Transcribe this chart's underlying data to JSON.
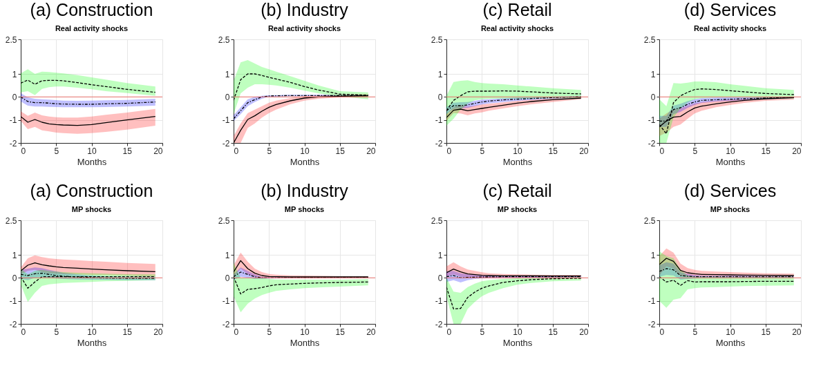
{
  "chart_data": [
    {
      "type": "line",
      "title": "(a) Construction",
      "subtitle": "Real activity shocks",
      "xlabel": "Months",
      "x": [
        0,
        1,
        2,
        3,
        4,
        5,
        6,
        8,
        10,
        12,
        15,
        19
      ],
      "xlim": [
        0,
        20
      ],
      "xticks": [
        0,
        5,
        10,
        15,
        20
      ],
      "ylim": [
        -2,
        2.5
      ],
      "yticks": [
        -2,
        -1,
        0,
        1,
        2.5
      ],
      "grid": true,
      "ref_lines": [
        {
          "axis": "y",
          "value": 0,
          "color": "#e8706c"
        }
      ],
      "series": [
        {
          "color": "#000000",
          "line_style": "solid",
          "values": [
            -0.85,
            -1.1,
            -0.98,
            -1.1,
            -1.17,
            -1.2,
            -1.22,
            -1.24,
            -1.2,
            -1.12,
            -1.0,
            -0.85
          ],
          "lower": [
            -1.05,
            -1.4,
            -1.3,
            -1.45,
            -1.5,
            -1.55,
            -1.57,
            -1.6,
            -1.57,
            -1.52,
            -1.42,
            -1.25
          ],
          "upper": [
            -0.62,
            -0.82,
            -0.68,
            -0.8,
            -0.85,
            -0.88,
            -0.9,
            -0.9,
            -0.85,
            -0.78,
            -0.68,
            -0.52
          ]
        },
        {
          "color": "#000000",
          "line_style": "dotted",
          "values": [
            0,
            -0.2,
            -0.25,
            -0.25,
            -0.27,
            -0.3,
            -0.31,
            -0.32,
            -0.32,
            -0.3,
            -0.28,
            -0.22
          ],
          "lower": [
            -0.2,
            -0.38,
            -0.42,
            -0.42,
            -0.43,
            -0.44,
            -0.45,
            -0.45,
            -0.45,
            -0.44,
            -0.42,
            -0.38
          ],
          "upper": [
            0.17,
            -0.02,
            -0.08,
            -0.1,
            -0.12,
            -0.14,
            -0.16,
            -0.17,
            -0.16,
            -0.15,
            -0.13,
            -0.08
          ]
        },
        {
          "color": "#000000",
          "line_style": "dashed",
          "values": [
            0.6,
            0.73,
            0.55,
            0.7,
            0.72,
            0.72,
            0.7,
            0.62,
            0.53,
            0.45,
            0.33,
            0.2
          ],
          "lower": [
            0.2,
            0.25,
            0.08,
            0.35,
            0.42,
            0.45,
            0.45,
            0.4,
            0.33,
            0.25,
            0.17,
            0.05
          ],
          "upper": [
            1.02,
            1.2,
            1.0,
            1.1,
            1.08,
            1.05,
            1.02,
            0.95,
            0.85,
            0.75,
            0.6,
            0.45
          ]
        }
      ]
    },
    {
      "type": "line",
      "title": "(b) Industry",
      "subtitle": "Real activity shocks",
      "xlabel": "Months",
      "x": [
        0,
        1,
        2,
        3,
        4,
        5,
        6,
        8,
        10,
        12,
        15,
        19
      ],
      "xlim": [
        0,
        20
      ],
      "xticks": [
        0,
        5,
        10,
        15,
        20
      ],
      "ylim": [
        -2,
        2.5
      ],
      "yticks": [
        -2,
        -1,
        0,
        1,
        2.5
      ],
      "grid": true,
      "ref_lines": [
        {
          "axis": "y",
          "value": 0,
          "color": "#e8706c"
        }
      ],
      "series": [
        {
          "color": "#000000",
          "line_style": "solid",
          "values": [
            -2,
            -1.45,
            -0.98,
            -0.82,
            -0.62,
            -0.45,
            -0.33,
            -0.17,
            -0.05,
            0,
            0.03,
            0.05
          ],
          "lower": [
            -2,
            -2,
            -1.35,
            -1.15,
            -0.9,
            -0.7,
            -0.55,
            -0.32,
            -0.16,
            -0.08,
            -0.02,
            0
          ],
          "upper": [
            -1.7,
            -1.15,
            -0.7,
            -0.55,
            -0.4,
            -0.25,
            -0.16,
            -0.05,
            0.03,
            0.06,
            0.1,
            0.12
          ]
        },
        {
          "color": "#000000",
          "line_style": "dotted",
          "values": [
            -0.95,
            -0.6,
            -0.25,
            -0.12,
            0,
            0.04,
            0.05,
            0.06,
            0.06,
            0.06,
            0.06,
            0.06
          ],
          "lower": [
            -1.05,
            -0.75,
            -0.4,
            -0.22,
            -0.08,
            0,
            0.02,
            0.03,
            0.03,
            0.03,
            0.03,
            0.03
          ],
          "upper": [
            -0.8,
            -0.45,
            -0.1,
            0,
            0.05,
            0.07,
            0.08,
            0.09,
            0.09,
            0.09,
            0.09,
            0.09
          ]
        },
        {
          "color": "#000000",
          "line_style": "dashed",
          "values": [
            -0.15,
            0.75,
            1.0,
            1.0,
            0.93,
            0.85,
            0.78,
            0.63,
            0.45,
            0.3,
            0.12,
            0.07
          ],
          "lower": [
            -0.75,
            0.15,
            0.4,
            0.55,
            0.55,
            0.53,
            0.5,
            0.4,
            0.27,
            0.15,
            0.02,
            -0.1
          ],
          "upper": [
            0.7,
            1.5,
            1.6,
            1.45,
            1.3,
            1.2,
            1.1,
            0.9,
            0.7,
            0.5,
            0.25,
            0.2
          ]
        }
      ]
    },
    {
      "type": "line",
      "title": "(c) Retail",
      "subtitle": "Real activity shocks",
      "xlabel": "Months",
      "x": [
        0,
        1,
        2,
        3,
        4,
        5,
        6,
        8,
        10,
        12,
        15,
        19
      ],
      "xlim": [
        0,
        20
      ],
      "xticks": [
        0,
        5,
        10,
        15,
        20
      ],
      "ylim": [
        -2,
        2.5
      ],
      "yticks": [
        -2,
        -1,
        0,
        1,
        2.5
      ],
      "grid": true,
      "ref_lines": [
        {
          "axis": "y",
          "value": 0,
          "color": "#e8706c"
        }
      ],
      "series": [
        {
          "color": "#000000",
          "line_style": "solid",
          "values": [
            -0.9,
            -0.58,
            -0.53,
            -0.6,
            -0.55,
            -0.5,
            -0.45,
            -0.36,
            -0.27,
            -0.2,
            -0.12,
            -0.05
          ],
          "lower": [
            -1.05,
            -0.7,
            -0.72,
            -0.8,
            -0.72,
            -0.67,
            -0.6,
            -0.5,
            -0.4,
            -0.32,
            -0.22,
            -0.1
          ],
          "upper": [
            -0.75,
            -0.45,
            -0.35,
            -0.42,
            -0.38,
            -0.33,
            -0.3,
            -0.24,
            -0.17,
            -0.12,
            -0.06,
            0
          ]
        },
        {
          "color": "#000000",
          "line_style": "dotted",
          "values": [
            -0.6,
            -0.38,
            -0.38,
            -0.35,
            -0.28,
            -0.22,
            -0.18,
            -0.13,
            -0.1,
            -0.07,
            -0.03,
            0.01
          ],
          "lower": [
            -0.75,
            -0.52,
            -0.5,
            -0.48,
            -0.4,
            -0.33,
            -0.28,
            -0.22,
            -0.17,
            -0.13,
            -0.08,
            -0.03
          ],
          "upper": [
            -0.45,
            -0.25,
            -0.23,
            -0.22,
            -0.17,
            -0.12,
            -0.1,
            -0.06,
            -0.03,
            -0.01,
            0.02,
            0.05
          ]
        },
        {
          "color": "#000000",
          "line_style": "dashed",
          "values": [
            -0.6,
            -0.15,
            0.05,
            0.22,
            0.25,
            0.25,
            0.25,
            0.26,
            0.25,
            0.22,
            0.17,
            0.13
          ],
          "lower": [
            -1.25,
            -0.95,
            -0.55,
            -0.3,
            -0.15,
            -0.1,
            -0.08,
            -0.07,
            -0.07,
            -0.07,
            -0.06,
            -0.05
          ],
          "upper": [
            0.05,
            0.65,
            0.7,
            0.72,
            0.65,
            0.6,
            0.58,
            0.55,
            0.5,
            0.45,
            0.38,
            0.3
          ]
        }
      ]
    },
    {
      "type": "line",
      "title": "(d) Services",
      "subtitle": "Real activity shocks",
      "xlabel": "Months",
      "x": [
        0,
        1,
        2,
        3,
        4,
        5,
        6,
        8,
        10,
        12,
        15,
        19
      ],
      "xlim": [
        0,
        20
      ],
      "xticks": [
        0,
        5,
        10,
        15,
        20
      ],
      "ylim": [
        -2,
        2.5
      ],
      "yticks": [
        -2,
        -1,
        0,
        1,
        2.5
      ],
      "grid": true,
      "ref_lines": [
        {
          "axis": "y",
          "value": 0,
          "color": "#e8706c"
        }
      ],
      "series": [
        {
          "color": "#000000",
          "line_style": "solid",
          "values": [
            -1.3,
            -1.05,
            -0.88,
            -0.85,
            -0.65,
            -0.48,
            -0.4,
            -0.3,
            -0.22,
            -0.15,
            -0.08,
            -0.03
          ],
          "lower": [
            -1.7,
            -1.55,
            -1.3,
            -1.2,
            -0.95,
            -0.72,
            -0.6,
            -0.45,
            -0.35,
            -0.26,
            -0.17,
            -0.12
          ],
          "upper": [
            -0.95,
            -0.72,
            -0.55,
            -0.5,
            -0.38,
            -0.28,
            -0.22,
            -0.16,
            -0.12,
            -0.08,
            -0.03,
            0.02
          ]
        },
        {
          "color": "#000000",
          "line_style": "dotted",
          "values": [
            -1.05,
            -1.05,
            -0.55,
            -0.47,
            -0.32,
            -0.22,
            -0.15,
            -0.12,
            -0.1,
            -0.08,
            -0.05,
            -0.02
          ],
          "lower": [
            -1.3,
            -1.3,
            -0.75,
            -0.65,
            -0.48,
            -0.35,
            -0.26,
            -0.2,
            -0.17,
            -0.14,
            -0.1,
            -0.06
          ],
          "upper": [
            -0.82,
            -0.82,
            -0.38,
            -0.3,
            -0.18,
            -0.1,
            -0.05,
            -0.03,
            -0.02,
            -0.01,
            0,
            0.02
          ]
        },
        {
          "color": "#000000",
          "line_style": "dashed",
          "values": [
            -1.2,
            -1.6,
            -0.25,
            0.05,
            0.2,
            0.32,
            0.35,
            0.32,
            0.27,
            0.22,
            0.15,
            0.1
          ],
          "lower": [
            -2,
            -2,
            -0.9,
            -0.5,
            -0.25,
            -0.1,
            -0.05,
            -0.03,
            -0.03,
            -0.03,
            -0.05,
            -0.07
          ],
          "upper": [
            -0.1,
            -0.4,
            0.6,
            0.58,
            0.62,
            0.67,
            0.67,
            0.64,
            0.55,
            0.48,
            0.38,
            0.3
          ]
        }
      ]
    },
    {
      "type": "line",
      "title": "(a) Construction",
      "subtitle": "MP shocks",
      "xlabel": "Months",
      "x": [
        0,
        1,
        2,
        3,
        4,
        5,
        6,
        8,
        10,
        12,
        15,
        19
      ],
      "xlim": [
        0,
        20
      ],
      "xticks": [
        0,
        5,
        10,
        15,
        20
      ],
      "ylim": [
        -2,
        2.5
      ],
      "yticks": [
        -2,
        -1,
        0,
        1,
        2.5
      ],
      "grid": true,
      "ref_lines": [
        {
          "axis": "y",
          "value": 0,
          "color": "#e8706c"
        }
      ],
      "series": [
        {
          "color": "#000000",
          "line_style": "solid",
          "values": [
            0.3,
            0.55,
            0.65,
            0.57,
            0.52,
            0.48,
            0.45,
            0.42,
            0.38,
            0.35,
            0.31,
            0.27
          ],
          "lower": [
            0.15,
            0.3,
            0.35,
            0.25,
            0.2,
            0.18,
            0.16,
            0.15,
            0.13,
            0.12,
            0.1,
            0.05
          ],
          "upper": [
            0.45,
            0.85,
            0.98,
            0.9,
            0.85,
            0.82,
            0.8,
            0.77,
            0.73,
            0.7,
            0.65,
            0.6
          ]
        },
        {
          "color": "#000000",
          "line_style": "dotted",
          "values": [
            0.15,
            0.1,
            0.18,
            0.2,
            0.15,
            0.1,
            0.07,
            0.04,
            0.01,
            -0.01,
            -0.02,
            -0.02
          ],
          "lower": [
            -0.05,
            -0.1,
            0,
            0.03,
            0,
            -0.03,
            -0.05,
            -0.07,
            -0.08,
            -0.09,
            -0.1,
            -0.1
          ],
          "upper": [
            0.35,
            0.4,
            0.45,
            0.42,
            0.35,
            0.28,
            0.22,
            0.15,
            0.1,
            0.07,
            0.05,
            0.05
          ]
        },
        {
          "color": "#000000",
          "line_style": "dashed",
          "values": [
            0.05,
            -0.45,
            -0.18,
            0.05,
            0.05,
            0.05,
            0.05,
            0.05,
            0.05,
            0.05,
            0.05,
            0.05
          ],
          "lower": [
            -0.3,
            -1.05,
            -0.65,
            -0.35,
            -0.28,
            -0.25,
            -0.22,
            -0.2,
            -0.18,
            -0.15,
            -0.13,
            -0.1
          ],
          "upper": [
            0.4,
            0.15,
            0.3,
            0.35,
            0.3,
            0.27,
            0.25,
            0.22,
            0.2,
            0.18,
            0.16,
            0.15
          ]
        }
      ]
    },
    {
      "type": "line",
      "title": "(b) Industry",
      "subtitle": "MP shocks",
      "xlabel": "Months",
      "x": [
        0,
        1,
        2,
        3,
        4,
        5,
        6,
        8,
        10,
        12,
        15,
        19
      ],
      "xlim": [
        0,
        20
      ],
      "xticks": [
        0,
        5,
        10,
        15,
        20
      ],
      "ylim": [
        -2,
        2.5
      ],
      "yticks": [
        -2,
        -1,
        0,
        1,
        2.5
      ],
      "grid": true,
      "ref_lines": [
        {
          "axis": "y",
          "value": 0,
          "color": "#e8706c"
        }
      ],
      "series": [
        {
          "color": "#000000",
          "line_style": "solid",
          "values": [
            0.25,
            0.75,
            0.4,
            0.2,
            0.1,
            0.06,
            0.05,
            0.04,
            0.04,
            0.04,
            0.04,
            0.04
          ],
          "lower": [
            0,
            0.4,
            0.15,
            0.05,
            0,
            0,
            0,
            0,
            0,
            0,
            0,
            0
          ],
          "upper": [
            0.55,
            1.1,
            0.7,
            0.4,
            0.25,
            0.17,
            0.14,
            0.11,
            0.1,
            0.09,
            0.08,
            0.08
          ]
        },
        {
          "color": "#000000",
          "line_style": "dotted",
          "values": [
            0.05,
            0.25,
            0.15,
            0.05,
            0,
            0,
            0,
            0.01,
            0.01,
            0.01,
            0.02,
            0.02
          ],
          "lower": [
            -0.1,
            0.05,
            0,
            -0.05,
            -0.05,
            -0.03,
            -0.02,
            -0.01,
            -0.01,
            0,
            0,
            0
          ],
          "upper": [
            0.15,
            0.45,
            0.3,
            0.15,
            0.05,
            0.03,
            0.03,
            0.03,
            0.03,
            0.03,
            0.04,
            0.04
          ]
        },
        {
          "color": "#000000",
          "line_style": "dashed",
          "values": [
            0.05,
            -0.7,
            -0.5,
            -0.47,
            -0.42,
            -0.35,
            -0.3,
            -0.27,
            -0.24,
            -0.22,
            -0.2,
            -0.18
          ],
          "lower": [
            -0.8,
            -1.5,
            -1.12,
            -0.9,
            -0.75,
            -0.65,
            -0.57,
            -0.5,
            -0.45,
            -0.42,
            -0.38,
            -0.33
          ],
          "upper": [
            0.65,
            0,
            0,
            0,
            0,
            -0.05,
            -0.07,
            -0.08,
            -0.08,
            -0.08,
            -0.08,
            -0.06
          ]
        }
      ]
    },
    {
      "type": "line",
      "title": "(c) Retail",
      "subtitle": "MP shocks",
      "xlabel": "Months",
      "x": [
        0,
        1,
        2,
        3,
        4,
        5,
        6,
        8,
        10,
        12,
        15,
        19
      ],
      "xlim": [
        0,
        20
      ],
      "xticks": [
        0,
        5,
        10,
        15,
        20
      ],
      "ylim": [
        -2,
        2.5
      ],
      "yticks": [
        -2,
        -1,
        0,
        1,
        2.5
      ],
      "grid": true,
      "ref_lines": [
        {
          "axis": "y",
          "value": 0,
          "color": "#e8706c"
        }
      ],
      "series": [
        {
          "color": "#000000",
          "line_style": "solid",
          "values": [
            0.22,
            0.38,
            0.26,
            0.17,
            0.14,
            0.11,
            0.1,
            0.09,
            0.09,
            0.09,
            0.08,
            0.08
          ],
          "lower": [
            0.05,
            0.15,
            0.05,
            0.02,
            0.02,
            0.02,
            0.02,
            0.02,
            0.02,
            0.02,
            0.02,
            0.02
          ],
          "upper": [
            0.5,
            0.68,
            0.5,
            0.36,
            0.3,
            0.24,
            0.2,
            0.17,
            0.15,
            0.14,
            0.13,
            0.13
          ]
        },
        {
          "color": "#000000",
          "line_style": "dotted",
          "values": [
            0.05,
            0.1,
            0,
            0.02,
            0.03,
            0.04,
            0.04,
            0.05,
            0.05,
            0.05,
            0.05,
            0.05
          ],
          "lower": [
            -0.18,
            -0.1,
            -0.2,
            -0.1,
            -0.05,
            -0.03,
            -0.02,
            -0.01,
            0,
            0,
            0,
            0
          ],
          "upper": [
            0.28,
            0.3,
            0.2,
            0.15,
            0.12,
            0.1,
            0.1,
            0.1,
            0.1,
            0.1,
            0.1,
            0.1
          ]
        },
        {
          "color": "#000000",
          "line_style": "dashed",
          "values": [
            -0.4,
            -1.35,
            -1.33,
            -0.85,
            -0.62,
            -0.45,
            -0.35,
            -0.2,
            -0.13,
            -0.08,
            -0.04,
            -0.02
          ],
          "lower": [
            -0.8,
            -2,
            -2,
            -1.35,
            -1.05,
            -0.8,
            -0.65,
            -0.45,
            -0.3,
            -0.22,
            -0.15,
            -0.12
          ],
          "upper": [
            0,
            -0.6,
            -0.65,
            -0.4,
            -0.25,
            -0.15,
            -0.1,
            -0.05,
            -0.02,
            0,
            0.02,
            0.03
          ]
        }
      ]
    },
    {
      "type": "line",
      "title": "(d) Services",
      "subtitle": "MP shocks",
      "xlabel": "Months",
      "x": [
        0,
        1,
        2,
        3,
        4,
        5,
        6,
        8,
        10,
        12,
        15,
        19
      ],
      "xlim": [
        0,
        20
      ],
      "xticks": [
        0,
        5,
        10,
        15,
        20
      ],
      "ylim": [
        -2,
        2.5
      ],
      "yticks": [
        -2,
        -1,
        0,
        1,
        2.5
      ],
      "grid": true,
      "ref_lines": [
        {
          "axis": "y",
          "value": 0,
          "color": "#e8706c"
        }
      ],
      "series": [
        {
          "color": "#000000",
          "line_style": "solid",
          "values": [
            0.58,
            0.85,
            0.72,
            0.32,
            0.22,
            0.18,
            0.15,
            0.14,
            0.13,
            0.12,
            0.11,
            0.1
          ],
          "lower": [
            0.1,
            0.5,
            0.4,
            0.08,
            0.04,
            0.03,
            0.03,
            0.03,
            0.03,
            0.03,
            0.03,
            0.03
          ],
          "upper": [
            0.95,
            1.28,
            1.1,
            0.62,
            0.42,
            0.35,
            0.3,
            0.27,
            0.25,
            0.23,
            0.2,
            0.18
          ]
        },
        {
          "color": "#000000",
          "line_style": "dotted",
          "values": [
            0.28,
            0.4,
            0.35,
            0.1,
            0.07,
            0.05,
            0.05,
            0.05,
            0.05,
            0.05,
            0.05,
            0.05
          ],
          "lower": [
            0.05,
            0.12,
            0.1,
            -0.08,
            -0.05,
            -0.03,
            -0.02,
            -0.02,
            -0.01,
            -0.01,
            0,
            0
          ],
          "upper": [
            0.55,
            0.68,
            0.62,
            0.25,
            0.17,
            0.12,
            0.1,
            0.09,
            0.09,
            0.09,
            0.08,
            0.08
          ]
        },
        {
          "color": "#000000",
          "line_style": "dashed",
          "values": [
            0.05,
            -0.18,
            -0.1,
            -0.33,
            -0.12,
            -0.18,
            -0.17,
            -0.17,
            -0.17,
            -0.16,
            -0.15,
            -0.15
          ],
          "lower": [
            -1.0,
            -1.3,
            -0.95,
            -0.88,
            -0.5,
            -0.45,
            -0.42,
            -0.4,
            -0.38,
            -0.36,
            -0.34,
            -0.33
          ],
          "upper": [
            1.15,
            0.95,
            0.85,
            0.35,
            0.1,
            0.05,
            0.05,
            0.05,
            0.04,
            0.04,
            0.04,
            0.04
          ]
        }
      ]
    }
  ]
}
